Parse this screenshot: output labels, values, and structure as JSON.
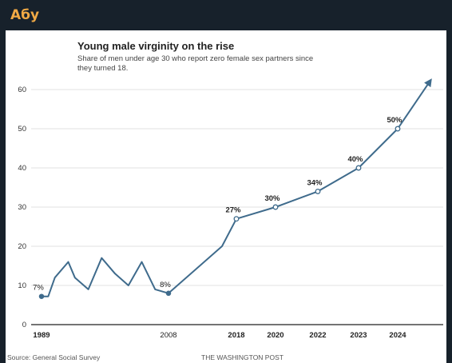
{
  "message": {
    "sender": "Абу"
  },
  "colors": {
    "line": "#3f6b8c",
    "accent": "#f0a945"
  },
  "chart_data": {
    "type": "line",
    "title": "Young male virginity on the rise",
    "subtitle_lines": [
      "Share of men under age 30 who report zero female sex partners since",
      "they turned 18."
    ],
    "xlabel": "",
    "ylabel": "",
    "ylim": [
      0,
      60
    ],
    "yticks": [
      0,
      10,
      20,
      30,
      40,
      50,
      60
    ],
    "x_tick_labels": [
      {
        "label": "1989",
        "x": 1989,
        "bold": true
      },
      {
        "label": "2008",
        "x": 2008,
        "bold": false
      },
      {
        "label": "2018",
        "x": 2018,
        "bold": true
      },
      {
        "label": "2020",
        "x": 2020,
        "bold": true
      },
      {
        "label": "2022",
        "x": 2022,
        "bold": true
      },
      {
        "label": "2023",
        "x": 2023,
        "bold": true
      },
      {
        "label": "2024",
        "x": 2024,
        "bold": true
      }
    ],
    "grid": true,
    "series": [
      {
        "points": [
          {
            "x": 1989,
            "y": 7.2
          },
          {
            "x": 1990,
            "y": 7.2
          },
          {
            "x": 1991,
            "y": 12
          },
          {
            "x": 1993,
            "y": 16
          },
          {
            "x": 1994,
            "y": 12
          },
          {
            "x": 1996,
            "y": 9
          },
          {
            "x": 1998,
            "y": 17
          },
          {
            "x": 2000,
            "y": 13
          },
          {
            "x": 2002,
            "y": 10
          },
          {
            "x": 2004,
            "y": 16
          },
          {
            "x": 2006,
            "y": 9
          },
          {
            "x": 2008,
            "y": 8
          },
          {
            "x": 2016,
            "y": 20
          },
          {
            "x": 2018,
            "y": 27
          },
          {
            "x": 2020,
            "y": 30
          },
          {
            "x": 2022,
            "y": 34
          },
          {
            "x": 2023,
            "y": 40
          },
          {
            "x": 2024,
            "y": 50
          },
          {
            "x": 2025,
            "y": 62
          }
        ]
      }
    ],
    "data_labels": [
      {
        "x": 1989,
        "y": 7.2,
        "label": "7%",
        "bold": false,
        "marker": "filled"
      },
      {
        "x": 2008,
        "y": 8,
        "label": "8%",
        "bold": false,
        "marker": "filled"
      },
      {
        "x": 2018,
        "y": 27,
        "label": "27%",
        "bold": true,
        "marker": "hollow"
      },
      {
        "x": 2020,
        "y": 30,
        "label": "30%",
        "bold": true,
        "marker": "hollow"
      },
      {
        "x": 2022,
        "y": 34,
        "label": "34%",
        "bold": true,
        "marker": "hollow"
      },
      {
        "x": 2023,
        "y": 40,
        "label": "40%",
        "bold": true,
        "marker": "hollow"
      },
      {
        "x": 2024,
        "y": 50,
        "label": "50%",
        "bold": true,
        "marker": "hollow"
      }
    ],
    "arrow_at_end": true,
    "source": "Source: General Social Survey",
    "credit": "THE WASHINGTON POST"
  }
}
